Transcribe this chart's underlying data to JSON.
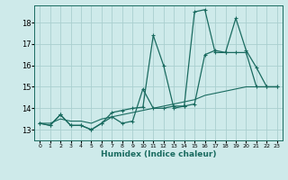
{
  "xlabel": "Humidex (Indice chaleur)",
  "bg_color": "#ceeaea",
  "line_color": "#1a6b60",
  "grid_color": "#aacfcf",
  "xlim": [
    -0.5,
    23.5
  ],
  "ylim": [
    12.5,
    18.8
  ],
  "yticks": [
    13,
    14,
    15,
    16,
    17,
    18
  ],
  "xticks": [
    0,
    1,
    2,
    3,
    4,
    5,
    6,
    7,
    8,
    9,
    10,
    11,
    12,
    13,
    14,
    15,
    16,
    17,
    18,
    19,
    20,
    21,
    22,
    23
  ],
  "series": [
    [
      13.3,
      13.2,
      13.7,
      13.2,
      13.2,
      13.0,
      13.3,
      13.8,
      13.9,
      14.0,
      14.05,
      17.4,
      16.0,
      14.0,
      14.1,
      18.5,
      18.6,
      16.6,
      16.6,
      18.2,
      16.7,
      15.9,
      15.0,
      15.0
    ],
    [
      13.3,
      13.2,
      13.7,
      13.2,
      13.2,
      13.0,
      13.3,
      13.6,
      13.3,
      13.4,
      14.9,
      14.0,
      14.0,
      14.1,
      14.1,
      14.2,
      16.5,
      16.7,
      16.6,
      16.6,
      16.6,
      15.0,
      15.0,
      15.0
    ],
    [
      13.3,
      13.3,
      13.5,
      13.4,
      13.4,
      13.3,
      13.5,
      13.6,
      13.7,
      13.8,
      13.9,
      14.0,
      14.1,
      14.2,
      14.3,
      14.4,
      14.6,
      14.7,
      14.8,
      14.9,
      15.0,
      15.0,
      15.0,
      15.0
    ]
  ]
}
